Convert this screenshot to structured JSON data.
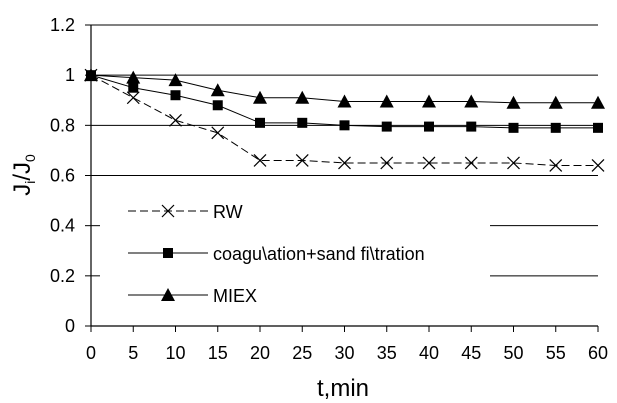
{
  "chart_data": {
    "type": "line",
    "title": "",
    "xlabel": "t,min",
    "ylabel_main": "J",
    "ylabel_sub1": "i",
    "ylabel_slash": "/J",
    "ylabel_sub2": "0",
    "x": [
      0,
      5,
      10,
      15,
      20,
      25,
      30,
      35,
      40,
      45,
      50,
      55,
      60
    ],
    "x_ticks": [
      "0",
      "5",
      "10",
      "15",
      "20",
      "25",
      "30",
      "35",
      "40",
      "45",
      "50",
      "55",
      "60"
    ],
    "y_ticks": [
      "0",
      "0.2",
      "0.4",
      "0.6",
      "0.8",
      "1",
      "1.2"
    ],
    "xlim": [
      0,
      60
    ],
    "ylim": [
      0,
      1.2
    ],
    "grid": "horizontal",
    "legend_position": "inside-lower-left",
    "series": [
      {
        "name": "RW",
        "marker": "x",
        "color": "#000000",
        "values": [
          1.0,
          0.91,
          0.82,
          0.77,
          0.66,
          0.66,
          0.65,
          0.65,
          0.65,
          0.65,
          0.65,
          0.64,
          0.64
        ]
      },
      {
        "name": "coagu\\ation+sand fi\\tration",
        "marker": "square",
        "color": "#000000",
        "values": [
          1.0,
          0.95,
          0.92,
          0.88,
          0.81,
          0.81,
          0.8,
          0.795,
          0.795,
          0.795,
          0.79,
          0.79,
          0.79
        ]
      },
      {
        "name": "MIEX",
        "marker": "triangle",
        "color": "#000000",
        "values": [
          1.0,
          0.99,
          0.98,
          0.94,
          0.91,
          0.91,
          0.895,
          0.895,
          0.895,
          0.895,
          0.89,
          0.89,
          0.89
        ]
      }
    ]
  }
}
